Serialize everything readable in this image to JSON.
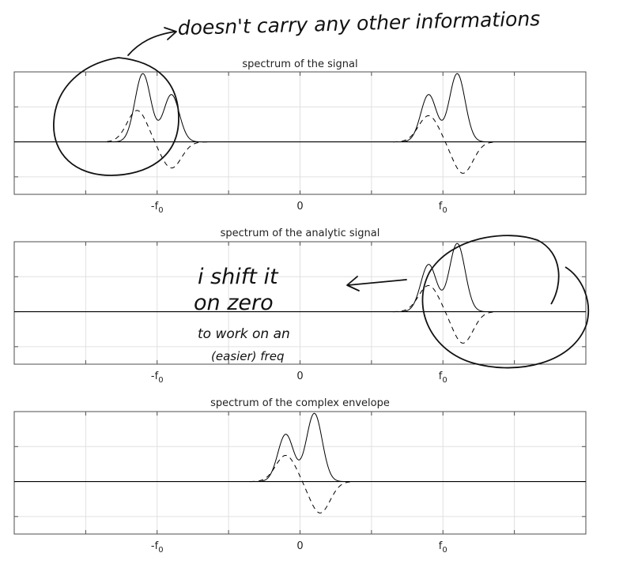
{
  "chart_data": [
    {
      "type": "line",
      "title": "spectrum of the signal",
      "xlim": [
        -2,
        2
      ],
      "ylim": [
        -1.5,
        2
      ],
      "grid": true,
      "xticks": [
        {
          "x": -1,
          "label": "-f",
          "sub": "0"
        },
        {
          "x": 0,
          "label": "0",
          "sub": ""
        },
        {
          "x": 1,
          "label": "f",
          "sub": "0"
        }
      ],
      "series": [
        {
          "style": "solid",
          "components": [
            {
              "center": -1,
              "peaks": [
                {
                  "offset": -0.1,
                  "amp": 1.95,
                  "sigma": 0.055
                },
                {
                  "offset": 0.1,
                  "amp": 1.35,
                  "sigma": 0.055
                }
              ]
            },
            {
              "center": 1,
              "peaks": [
                {
                  "offset": -0.1,
                  "amp": 1.35,
                  "sigma": 0.055
                },
                {
                  "offset": 0.1,
                  "amp": 1.95,
                  "sigma": 0.055
                }
              ]
            }
          ]
        },
        {
          "style": "dashed",
          "components": [
            {
              "center": -1,
              "peaks": [
                {
                  "offset": -0.14,
                  "amp": 0.9,
                  "sigma": 0.07
                },
                {
                  "offset": 0.1,
                  "amp": -0.75,
                  "sigma": 0.07
                }
              ]
            },
            {
              "center": 1,
              "peaks": [
                {
                  "offset": -0.1,
                  "amp": 0.75,
                  "sigma": 0.07
                },
                {
                  "offset": 0.14,
                  "amp": -0.9,
                  "sigma": 0.07
                }
              ]
            }
          ]
        }
      ]
    },
    {
      "type": "line",
      "title": "spectrum of the analytic signal",
      "xlim": [
        -2,
        2
      ],
      "ylim": [
        -1.5,
        2
      ],
      "grid": true,
      "xticks": [
        {
          "x": -1,
          "label": "-f",
          "sub": "0"
        },
        {
          "x": 0,
          "label": "0",
          "sub": ""
        },
        {
          "x": 1,
          "label": "f",
          "sub": "0"
        }
      ],
      "series": [
        {
          "style": "solid",
          "components": [
            {
              "center": 1,
              "peaks": [
                {
                  "offset": -0.1,
                  "amp": 1.35,
                  "sigma": 0.055
                },
                {
                  "offset": 0.1,
                  "amp": 1.95,
                  "sigma": 0.055
                }
              ]
            }
          ]
        },
        {
          "style": "dashed",
          "components": [
            {
              "center": 1,
              "peaks": [
                {
                  "offset": -0.1,
                  "amp": 0.75,
                  "sigma": 0.07
                },
                {
                  "offset": 0.14,
                  "amp": -0.9,
                  "sigma": 0.07
                }
              ]
            }
          ]
        }
      ]
    },
    {
      "type": "line",
      "title": "spectrum of the complex envelope",
      "xlim": [
        -2,
        2
      ],
      "ylim": [
        -1.5,
        2
      ],
      "grid": true,
      "xticks": [
        {
          "x": -1,
          "label": "-f",
          "sub": "0"
        },
        {
          "x": 0,
          "label": "0",
          "sub": ""
        },
        {
          "x": 1,
          "label": "f",
          "sub": "0"
        }
      ],
      "series": [
        {
          "style": "solid",
          "components": [
            {
              "center": 0,
              "peaks": [
                {
                  "offset": -0.1,
                  "amp": 1.35,
                  "sigma": 0.055
                },
                {
                  "offset": 0.1,
                  "amp": 1.95,
                  "sigma": 0.055
                }
              ]
            }
          ]
        },
        {
          "style": "dashed",
          "components": [
            {
              "center": 0,
              "peaks": [
                {
                  "offset": -0.1,
                  "amp": 0.75,
                  "sigma": 0.07
                },
                {
                  "offset": 0.14,
                  "amp": -0.9,
                  "sigma": 0.07
                }
              ]
            }
          ]
        }
      ]
    }
  ],
  "annotations": {
    "top_note": "doesn't carry any other informations",
    "middle_note_lines": [
      "i shift it",
      "on zero",
      "to work on an",
      "(easier) freq"
    ]
  }
}
